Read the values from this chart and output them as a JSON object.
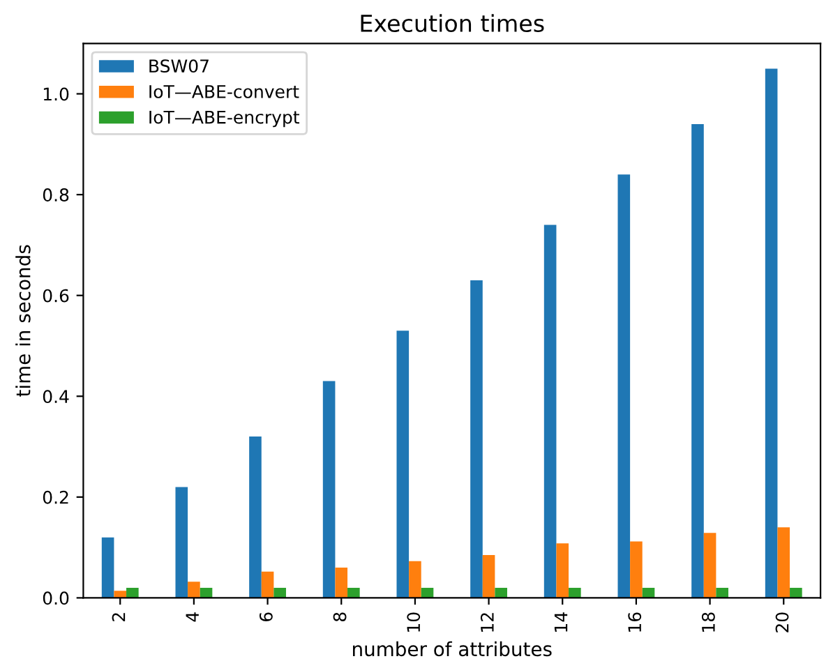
{
  "chart_data": {
    "type": "bar",
    "title": "Execution times",
    "xlabel": "number of attributes",
    "ylabel": "time in seconds",
    "categories": [
      "2",
      "4",
      "6",
      "8",
      "10",
      "12",
      "14",
      "16",
      "18",
      "20"
    ],
    "series": [
      {
        "name": "BSW07",
        "color": "#1f77b4",
        "values": [
          0.12,
          0.22,
          0.32,
          0.43,
          0.53,
          0.63,
          0.74,
          0.84,
          0.94,
          1.05
        ]
      },
      {
        "name": "IoT—ABE-convert",
        "color": "#ff7f0e",
        "values": [
          0.014,
          0.032,
          0.052,
          0.06,
          0.073,
          0.085,
          0.108,
          0.112,
          0.129,
          0.14
        ]
      },
      {
        "name": "IoT—ABE-encrypt",
        "color": "#2ca02c",
        "values": [
          0.02,
          0.02,
          0.02,
          0.02,
          0.02,
          0.02,
          0.02,
          0.02,
          0.02,
          0.02
        ]
      }
    ],
    "ylim": [
      0,
      1.1
    ],
    "yticks": [
      {
        "value": 0,
        "label": "0.0"
      },
      0.2,
      0.4,
      0.6,
      0.8,
      {
        "value": 1,
        "label": "1.0"
      }
    ],
    "legend": "top left",
    "grid": false
  }
}
